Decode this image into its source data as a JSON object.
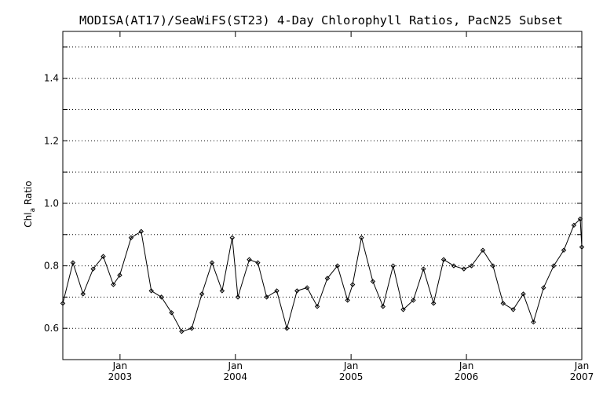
{
  "chart_data": {
    "type": "line",
    "title": "MODISA(AT17)/SeaWiFS(ST23) 4-Day Chlorophyll Ratios, PacN25 Subset",
    "xlabel": "",
    "ylabel": "Chl_a Ratio",
    "ylabel_main": "Chl",
    "ylabel_sub": "a",
    "ylabel_tail": " Ratio",
    "xlim": [
      "2002-07-04",
      "2007-01-01"
    ],
    "ylim": [
      0.5,
      1.55
    ],
    "y_ticks": [
      {
        "value": 0.6,
        "label": "0.6"
      },
      {
        "value": 0.8,
        "label": "0.8"
      },
      {
        "value": 1.0,
        "label": "1.0"
      },
      {
        "value": 1.2,
        "label": "1.2"
      },
      {
        "value": 1.4,
        "label": "1.4"
      }
    ],
    "y_minor_ticks": [
      0.7,
      0.9,
      1.1,
      1.3,
      1.5
    ],
    "x_ticks": [
      {
        "date": "2003-01-01",
        "month": "Jan",
        "year": "2003"
      },
      {
        "date": "2004-01-01",
        "month": "Jan",
        "year": "2004"
      },
      {
        "date": "2005-01-01",
        "month": "Jan",
        "year": "2005"
      },
      {
        "date": "2006-01-01",
        "month": "Jan",
        "year": "2006"
      },
      {
        "date": "2007-01-01",
        "month": "Jan",
        "year": "2007"
      }
    ],
    "grid": "horizontal dotted",
    "line_color": "#000000",
    "series": [
      {
        "points": [
          [
            "2002-07-04",
            0.68
          ],
          [
            "2002-08-05",
            0.81
          ],
          [
            "2002-09-06",
            0.71
          ],
          [
            "2002-10-08",
            0.79
          ],
          [
            "2002-11-09",
            0.83
          ],
          [
            "2002-12-11",
            0.74
          ],
          [
            "2002-12-31",
            0.77
          ],
          [
            "2003-02-05",
            0.89
          ],
          [
            "2003-03-09",
            0.91
          ],
          [
            "2003-04-10",
            0.72
          ],
          [
            "2003-05-12",
            0.7
          ],
          [
            "2003-06-13",
            0.65
          ],
          [
            "2003-07-15",
            0.59
          ],
          [
            "2003-08-16",
            0.6
          ],
          [
            "2003-09-17",
            0.71
          ],
          [
            "2003-10-19",
            0.81
          ],
          [
            "2003-11-20",
            0.72
          ],
          [
            "2003-12-22",
            0.89
          ],
          [
            "2004-01-09",
            0.7
          ],
          [
            "2004-02-14",
            0.82
          ],
          [
            "2004-03-12",
            0.81
          ],
          [
            "2004-04-09",
            0.7
          ],
          [
            "2004-05-11",
            0.72
          ],
          [
            "2004-06-12",
            0.6
          ],
          [
            "2004-07-14",
            0.72
          ],
          [
            "2004-08-15",
            0.73
          ],
          [
            "2004-09-16",
            0.67
          ],
          [
            "2004-10-18",
            0.76
          ],
          [
            "2004-11-19",
            0.8
          ],
          [
            "2004-12-21",
            0.69
          ],
          [
            "2005-01-06",
            0.74
          ],
          [
            "2005-02-03",
            0.89
          ],
          [
            "2005-03-11",
            0.75
          ],
          [
            "2005-04-12",
            0.67
          ],
          [
            "2005-05-14",
            0.8
          ],
          [
            "2005-06-15",
            0.66
          ],
          [
            "2005-07-17",
            0.69
          ],
          [
            "2005-08-18",
            0.79
          ],
          [
            "2005-09-19",
            0.68
          ],
          [
            "2005-10-21",
            0.82
          ],
          [
            "2005-11-22",
            0.8
          ],
          [
            "2005-12-24",
            0.79
          ],
          [
            "2006-01-17",
            0.8
          ],
          [
            "2006-02-22",
            0.85
          ],
          [
            "2006-03-26",
            0.8
          ],
          [
            "2006-04-27",
            0.68
          ],
          [
            "2006-05-29",
            0.66
          ],
          [
            "2006-06-30",
            0.71
          ],
          [
            "2006-08-01",
            0.62
          ],
          [
            "2006-09-02",
            0.73
          ],
          [
            "2006-10-04",
            0.8
          ],
          [
            "2006-11-05",
            0.85
          ],
          [
            "2006-12-07",
            0.93
          ],
          [
            "2006-12-27",
            0.95
          ],
          [
            "2007-01-01",
            0.86
          ]
        ]
      }
    ]
  }
}
